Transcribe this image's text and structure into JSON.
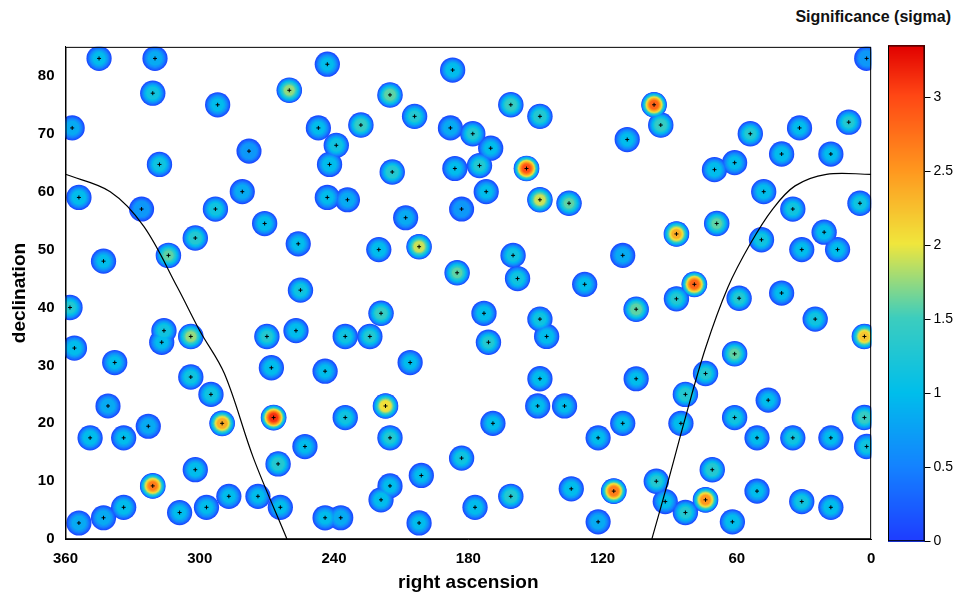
{
  "chart_data": {
    "type": "heatmap",
    "x_label": "right ascension",
    "y_label": "declination",
    "xlim": [
      360,
      0
    ],
    "xticks": [
      0,
      60,
      120,
      180,
      240,
      300,
      360
    ],
    "ylim": [
      0,
      85
    ],
    "yticks": [
      0,
      10,
      20,
      30,
      40,
      50,
      60,
      70,
      80
    ],
    "grid": false,
    "marker": "cross",
    "spots": {
      "x": [
        345,
        320,
        243,
        187,
        2,
        321,
        292,
        260,
        228,
        215,
        204,
        239,
        247,
        278,
        318,
        214,
        242,
        188,
        178,
        170,
        161,
        154,
        148,
        175,
        148,
        135,
        172,
        186,
        97,
        94,
        109,
        70,
        54,
        40,
        32,
        10,
        18,
        61,
        48,
        35,
        5,
        357,
        354,
        326,
        343,
        314,
        316,
        302,
        293,
        281,
        271,
        256,
        257,
        255,
        243,
        234,
        220,
        208,
        202,
        185,
        183,
        158,
        128,
        111,
        105,
        87,
        79,
        87,
        69,
        59,
        61,
        74,
        49,
        31,
        21,
        15,
        40,
        25,
        3,
        3,
        2,
        358,
        356,
        338,
        304,
        304,
        295,
        290,
        317,
        267,
        265,
        264,
        270,
        268,
        274,
        253,
        244,
        235,
        219,
        224,
        235,
        217,
        215,
        206,
        244,
        237,
        219,
        215,
        202,
        201,
        183,
        171,
        173,
        160,
        148,
        145,
        148,
        149,
        137,
        169,
        177,
        161,
        134,
        115,
        122,
        111,
        122,
        105,
        96,
        92,
        83,
        74,
        71,
        83,
        85,
        61,
        51,
        46,
        62,
        51,
        35,
        31,
        18,
        18,
        321,
        334,
        343,
        354,
        349,
        334,
        323,
        302,
        309,
        297,
        287,
        341
      ],
      "y": [
        83,
        83,
        82,
        81,
        83,
        77,
        75,
        77.5,
        71.5,
        76.7,
        73,
        68,
        71,
        67,
        64.7,
        63.4,
        64.7,
        71,
        70,
        67.5,
        75,
        64,
        73,
        64.5,
        58.6,
        58,
        60,
        64,
        75,
        71.5,
        69,
        63.8,
        70,
        66.5,
        71,
        72,
        66.5,
        65,
        60,
        57,
        58,
        71,
        59,
        57,
        48,
        49,
        36,
        52,
        57,
        60,
        54.5,
        51,
        36,
        43,
        59,
        58.6,
        50,
        55.5,
        50.5,
        46,
        57,
        45,
        44,
        49,
        39.7,
        52.7,
        44,
        41.5,
        54.5,
        41.6,
        32,
        28.6,
        51.7,
        50,
        53,
        50,
        42.5,
        38,
        35,
        21,
        16,
        40,
        33,
        30.5,
        35,
        28,
        25,
        20,
        34,
        21,
        13,
        5.5,
        35,
        29.6,
        7.4,
        16,
        29,
        35,
        39,
        35,
        21,
        23,
        17.5,
        30.5,
        3.7,
        3.7,
        6.8,
        9.2,
        2.8,
        11,
        14,
        34,
        39,
        49,
        38,
        35,
        27.7,
        23,
        23,
        20,
        5.5,
        7.4,
        8.7,
        8.3,
        17.5,
        20,
        3,
        27.7,
        10,
        6.5,
        4.6,
        6.8,
        12,
        25,
        20,
        21,
        17.5,
        24,
        3,
        8.3,
        17.5,
        6.5,
        5.5,
        17.5,
        9.2,
        5.5,
        3.7,
        2.8,
        17.5,
        17.5,
        19.5,
        12,
        4.6,
        5.5,
        7.4,
        23
      ],
      "significance": [
        1.0,
        0.9,
        1.0,
        1.1,
        0.8,
        1.2,
        1.0,
        1.8,
        1.5,
        1.7,
        1.3,
        1.2,
        1.0,
        0.8,
        1.2,
        1.4,
        1.1,
        0.9,
        1.3,
        1.0,
        1.5,
        3.0,
        1.4,
        1.3,
        2.0,
        1.6,
        1.0,
        1.0,
        2.9,
        1.5,
        1.0,
        1.1,
        1.3,
        1.1,
        1.0,
        1.3,
        1.0,
        1.0,
        1.1,
        1.2,
        1.2,
        0.9,
        1.1,
        0.8,
        1.0,
        1.6,
        1.2,
        1.4,
        1.2,
        0.9,
        1.1,
        1.0,
        1.1,
        1.2,
        1.0,
        0.9,
        1.1,
        0.9,
        2.0,
        1.6,
        0.8,
        1.2,
        1.0,
        0.9,
        1.7,
        2.4,
        2.9,
        1.3,
        1.6,
        1.3,
        1.6,
        1.3,
        1.2,
        1.0,
        1.1,
        1.0,
        1.0,
        1.2,
        2.3,
        1.5,
        1.2,
        1.3,
        1.1,
        1.0,
        1.8,
        1.2,
        1.2,
        2.5,
        1.0,
        3.2,
        1.4,
        1.0,
        1.3,
        1.1,
        1.0,
        1.0,
        1.0,
        1.2,
        1.5,
        1.3,
        1.2,
        2.2,
        1.3,
        1.0,
        1.0,
        0.9,
        1.1,
        1.0,
        1.0,
        1.0,
        1.2,
        1.3,
        1.1,
        1.2,
        1.2,
        1.1,
        1.1,
        1.0,
        1.0,
        1.0,
        1.1,
        1.4,
        1.1,
        2.8,
        1.0,
        1.0,
        0.9,
        1.0,
        1.3,
        1.0,
        1.3,
        2.6,
        1.4,
        1.4,
        1.1,
        1.2,
        1.0,
        1.0,
        1.1,
        1.0,
        1.2,
        1.2,
        1.1,
        1.0,
        2.7,
        1.1,
        0.9,
        0.9,
        1.1,
        1.0,
        0.9,
        1.1,
        1.0,
        1.0,
        1.0,
        0.9
      ]
    },
    "curves": [
      {
        "color": "#000000",
        "x": [
          360,
          340,
          325,
          310,
          300,
          289,
          276,
          261
        ],
        "y": [
          63,
          60,
          54,
          43.5,
          36,
          28.6,
          14,
          0
        ]
      },
      {
        "color": "#000000",
        "x": [
          98,
          90,
          83,
          74,
          64,
          54,
          44,
          34,
          20,
          0
        ],
        "y": [
          0,
          11,
          21,
          33,
          43.5,
          51,
          57,
          61,
          63,
          63
        ]
      }
    ],
    "colorbar": {
      "title": "Significance (sigma)",
      "range": [
        0,
        3.35
      ],
      "ticks": [
        0,
        0.5,
        1,
        1.5,
        2,
        2.5,
        3
      ]
    }
  }
}
